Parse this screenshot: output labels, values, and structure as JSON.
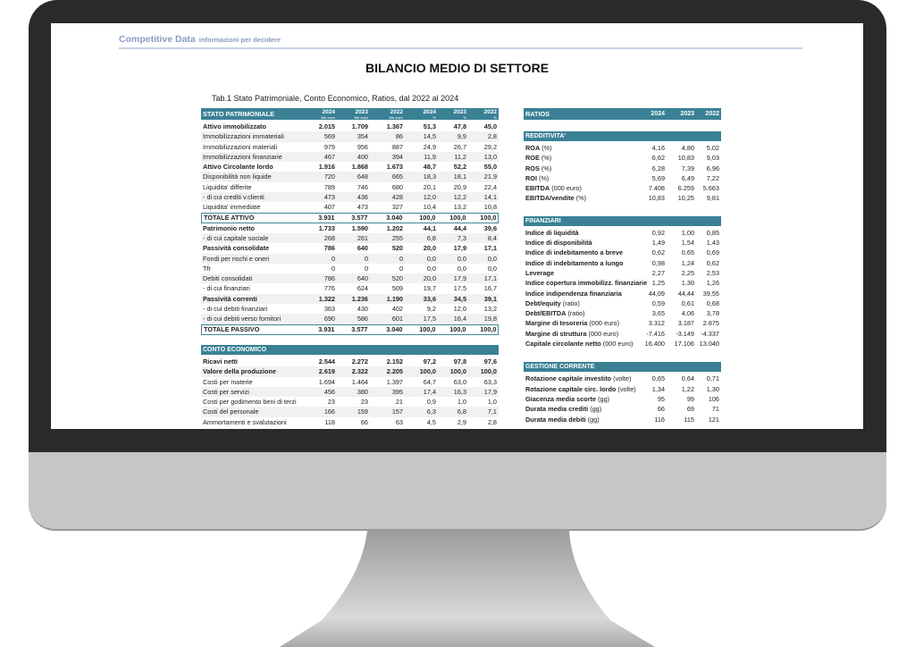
{
  "brand": {
    "name": "Competitive Data",
    "tagline": "informazioni per decidere"
  },
  "title": "BILANCIO MEDIO DI SETTORE",
  "caption": "Tab.1 Stato Patrimoniale, Conto Economico, Ratios, dal 2022 al 2024",
  "left": {
    "header": {
      "label": "STATO PATRIMONIALE",
      "cols": [
        [
          "2024",
          "Mn euro"
        ],
        [
          "2023",
          "Mn euro"
        ],
        [
          "2022",
          "Mn euro"
        ],
        [
          "2024",
          "%"
        ],
        [
          "2023",
          "%"
        ],
        [
          "2022",
          "%"
        ]
      ]
    },
    "rows": [
      {
        "label": "Attivo immobilizzato",
        "v": [
          "2.015",
          "1.709",
          "1.367",
          "51,3",
          "47,8",
          "45,0"
        ],
        "bold": true
      },
      {
        "label": "Immobilizzazioni immateriali",
        "v": [
          "569",
          "354",
          "86",
          "14,5",
          "9,9",
          "2,8"
        ]
      },
      {
        "label": "Immobilizzazioni materiali",
        "v": [
          "979",
          "956",
          "887",
          "24,9",
          "26,7",
          "29,2"
        ]
      },
      {
        "label": "Immobilizzazioni finanziarie",
        "v": [
          "467",
          "400",
          "394",
          "11,9",
          "11,2",
          "13,0"
        ]
      },
      {
        "label": "Attivo Circolante  lordo",
        "v": [
          "1.916",
          "1.868",
          "1.673",
          "48,7",
          "52,2",
          "55,0"
        ],
        "bold": true
      },
      {
        "label": "Disponibilità non liquide",
        "v": [
          "720",
          "648",
          "665",
          "18,3",
          "18,1",
          "21,9"
        ]
      },
      {
        "label": "Liquidita'  differite",
        "v": [
          "789",
          "746",
          "680",
          "20,1",
          "20,9",
          "22,4"
        ]
      },
      {
        "label": " - di cui crediti v.clienti",
        "v": [
          "473",
          "436",
          "428",
          "12,0",
          "12,2",
          "14,1"
        ]
      },
      {
        "label": "Liquidita'  immediate",
        "v": [
          "407",
          "473",
          "327",
          "10,4",
          "13,2",
          "10,8"
        ]
      },
      {
        "label": "TOTALE ATTIVO",
        "v": [
          "3.931",
          "3.577",
          "3.040",
          "100,0",
          "100,0",
          "100,0"
        ],
        "total": true
      },
      {
        "label": "Patrimonio netto",
        "v": [
          "1.733",
          "1.590",
          "1.202",
          "44,1",
          "44,4",
          "39,6"
        ],
        "bold": true
      },
      {
        "label": " - di cui capitale sociale",
        "v": [
          "268",
          "261",
          "255",
          "6,8",
          "7,3",
          "8,4"
        ]
      },
      {
        "label": "Passività consolidate",
        "v": [
          "786",
          "640",
          "520",
          "20,0",
          "17,9",
          "17,1"
        ],
        "bold": true
      },
      {
        "label": "Fondi per rischi e oneri",
        "v": [
          "0",
          "0",
          "0",
          "0,0",
          "0,0",
          "0,0"
        ]
      },
      {
        "label": "Tfr",
        "v": [
          "0",
          "0",
          "0",
          "0,0",
          "0,0",
          "0,0"
        ]
      },
      {
        "label": "Debiti consolidati",
        "v": [
          "786",
          "640",
          "520",
          "20,0",
          "17,9",
          "17,1"
        ]
      },
      {
        "label": " - di cui finanziari",
        "v": [
          "776",
          "624",
          "509",
          "19,7",
          "17,5",
          "16,7"
        ]
      },
      {
        "label": "Passività correnti",
        "v": [
          "1.322",
          "1.236",
          "1.190",
          "33,6",
          "34,5",
          "39,1"
        ],
        "bold": true
      },
      {
        "label": " - di cui debiti finanziari",
        "v": [
          "363",
          "430",
          "402",
          "9,2",
          "12,0",
          "13,2"
        ]
      },
      {
        "label": " - di cui debiti verso fornitori",
        "v": [
          "690",
          "586",
          "601",
          "17,5",
          "16,4",
          "19,8"
        ]
      },
      {
        "label": "TOTALE PASSIVO",
        "v": [
          "3.931",
          "3.577",
          "3.040",
          "100,0",
          "100,0",
          "100,0"
        ],
        "total": true
      }
    ],
    "ce_header": "CONTO ECONOMICO",
    "ce_rows": [
      {
        "label": "Ricavi netti",
        "v": [
          "2.544",
          "2.272",
          "2.152",
          "97,2",
          "97,8",
          "97,6"
        ],
        "bold": true
      },
      {
        "label": "Valore della produzione",
        "v": [
          "2.619",
          "2.322",
          "2.205",
          "100,0",
          "100,0",
          "100,0"
        ],
        "bold": true
      },
      {
        "label": "Costi per materie",
        "v": [
          "1.694",
          "1.464",
          "1.397",
          "64,7",
          "63,0",
          "63,3"
        ]
      },
      {
        "label": "Costi per servizi",
        "v": [
          "456",
          "380",
          "395",
          "17,4",
          "16,3",
          "17,9"
        ]
      },
      {
        "label": "Costi per godimento beni di terzi",
        "v": [
          "23",
          "23",
          "21",
          "0,9",
          "1,0",
          "1,0"
        ]
      },
      {
        "label": "Costi del personale",
        "v": [
          "166",
          "159",
          "157",
          "6,3",
          "6,8",
          "7,1"
        ]
      },
      {
        "label": "Ammortamenti e svalutazioni",
        "v": [
          "118",
          "66",
          "63",
          "4,5",
          "2,9",
          "2,8"
        ]
      }
    ]
  },
  "right": {
    "header": {
      "label": "RATIOS",
      "cols": [
        "2024",
        "2023",
        "2022"
      ]
    },
    "sections": [
      {
        "title": "REDDITIVITA'",
        "rows": [
          {
            "label": "ROA",
            "unit": "(%)",
            "v": [
              "4,16",
              "4,80",
              "5,02"
            ]
          },
          {
            "label": "ROE",
            "unit": "(%)",
            "v": [
              "6,62",
              "10,83",
              "9,03"
            ]
          },
          {
            "label": "ROS",
            "unit": "(%)",
            "v": [
              "6,28",
              "7,39",
              "6,96"
            ]
          },
          {
            "label": "ROI",
            "unit": "(%)",
            "v": [
              "5,69",
              "6,49",
              "7,22"
            ]
          },
          {
            "label": "EBITDA",
            "unit": "(000 euro)",
            "v": [
              "7.408",
              "6.259",
              "5.663"
            ]
          },
          {
            "label": "EBITDA/vendite",
            "unit": "(%)",
            "v": [
              "10,83",
              "10,25",
              "9,81"
            ]
          }
        ]
      },
      {
        "title": "FINANZIARI",
        "rows": [
          {
            "label": "Indice di liquidità",
            "unit": "",
            "v": [
              "0,92",
              "1,00",
              "0,85"
            ]
          },
          {
            "label": "Indice di disponibilità",
            "unit": "",
            "v": [
              "1,49",
              "1,54",
              "1,43"
            ]
          },
          {
            "label": "Indice di indebitamento a breve",
            "unit": "",
            "v": [
              "0,62",
              "0,65",
              "0,69"
            ]
          },
          {
            "label": "Indice di indebitamento a lungo",
            "unit": "",
            "v": [
              "0,98",
              "1,24",
              "0,62"
            ]
          },
          {
            "label": "Leverage",
            "unit": "",
            "v": [
              "2,27",
              "2,25",
              "2,53"
            ]
          },
          {
            "label": "Indice copertura immobilizz. finanziarie",
            "unit": "",
            "v": [
              "1,25",
              "1,30",
              "1,26"
            ]
          },
          {
            "label": "Indice indipendenza finanziaria",
            "unit": "",
            "v": [
              "44,09",
              "44,44",
              "39,55"
            ]
          },
          {
            "label": "Debt/equity",
            "unit": "(ratio)",
            "v": [
              "0,59",
              "0,61",
              "0,68"
            ]
          },
          {
            "label": "Debt/EBITDA",
            "unit": "(ratio)",
            "v": [
              "3,65",
              "4,06",
              "3,78"
            ]
          },
          {
            "label": "Margine di tesoreria",
            "unit": "(000 euro)",
            "v": [
              "3.312",
              "3.187",
              "2.875"
            ]
          },
          {
            "label": "Margine di struttura",
            "unit": "(000 euro)",
            "v": [
              "-7.416",
              "-3.149",
              "-4.337"
            ]
          },
          {
            "label": "Capitale circolante netto",
            "unit": "(000 euro)",
            "v": [
              "16.400",
              "17.106",
              "13.040"
            ]
          }
        ]
      },
      {
        "title": "GESTIONE CORRENTE",
        "rows": [
          {
            "label": "Rotazione capitale investito",
            "unit": "(volte)",
            "v": [
              "0,65",
              "0,64",
              "0,71"
            ]
          },
          {
            "label": "Rotazione capitale circ. lordo",
            "unit": "(volte)",
            "v": [
              "1,34",
              "1,22",
              "1,30"
            ]
          },
          {
            "label": "Giacenza media scorte",
            "unit": "(gg)",
            "v": [
              "95",
              "99",
              "106"
            ]
          },
          {
            "label": "Durata media crediti",
            "unit": "(gg)",
            "v": [
              "66",
              "69",
              "71"
            ]
          },
          {
            "label": "Durata media debiti",
            "unit": "(gg)",
            "v": [
              "116",
              "115",
              "121"
            ]
          }
        ]
      }
    ]
  }
}
